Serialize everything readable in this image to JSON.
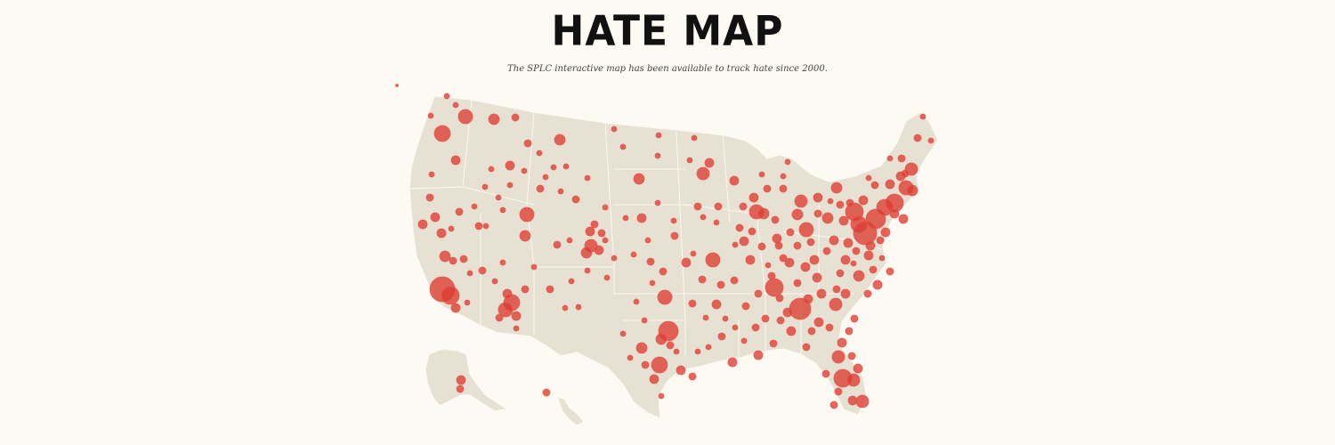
{
  "header": {
    "title": "HATE MAP",
    "subtitle": "The SPLC interactive map has been available to track hate since 2000."
  },
  "colors": {
    "background": "#fcfaf2",
    "land": "#e7e1d3",
    "marker": "#dc3c32"
  },
  "map": {
    "region": "United States",
    "marker_meaning": "hate group locations"
  }
}
